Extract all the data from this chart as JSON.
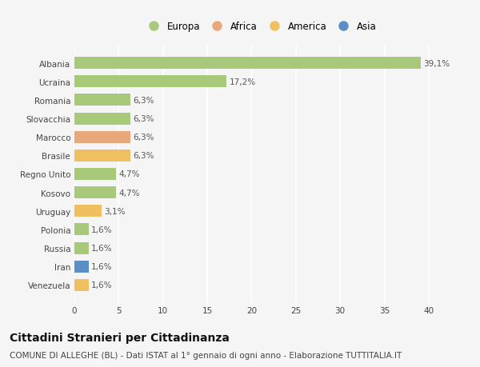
{
  "categories": [
    "Albania",
    "Ucraina",
    "Romania",
    "Slovacchia",
    "Marocco",
    "Brasile",
    "Regno Unito",
    "Kosovo",
    "Uruguay",
    "Polonia",
    "Russia",
    "Iran",
    "Venezuela"
  ],
  "values": [
    39.1,
    17.2,
    6.3,
    6.3,
    6.3,
    6.3,
    4.7,
    4.7,
    3.1,
    1.6,
    1.6,
    1.6,
    1.6
  ],
  "labels": [
    "39,1%",
    "17,2%",
    "6,3%",
    "6,3%",
    "6,3%",
    "6,3%",
    "4,7%",
    "4,7%",
    "3,1%",
    "1,6%",
    "1,6%",
    "1,6%",
    "1,6%"
  ],
  "colors": [
    "#a8c87a",
    "#a8c87a",
    "#a8c87a",
    "#a8c87a",
    "#e8a87c",
    "#f0c060",
    "#a8c87a",
    "#a8c87a",
    "#f0c060",
    "#a8c87a",
    "#a8c87a",
    "#5b8ec4",
    "#f0c060"
  ],
  "legend": [
    {
      "label": "Europa",
      "color": "#a8c87a"
    },
    {
      "label": "Africa",
      "color": "#e8a87c"
    },
    {
      "label": "America",
      "color": "#f0c060"
    },
    {
      "label": "Asia",
      "color": "#5b8ec4"
    }
  ],
  "xlim": [
    0,
    42
  ],
  "xticks": [
    0,
    5,
    10,
    15,
    20,
    25,
    30,
    35,
    40
  ],
  "title": "Cittadini Stranieri per Cittadinanza",
  "subtitle": "COMUNE DI ALLEGHE (BL) - Dati ISTAT al 1° gennaio di ogni anno - Elaborazione TUTTITALIA.IT",
  "background_color": "#f5f5f5",
  "grid_color": "#ffffff",
  "title_fontsize": 10,
  "subtitle_fontsize": 7.5,
  "label_fontsize": 7.5,
  "tick_fontsize": 7.5,
  "legend_fontsize": 8.5
}
